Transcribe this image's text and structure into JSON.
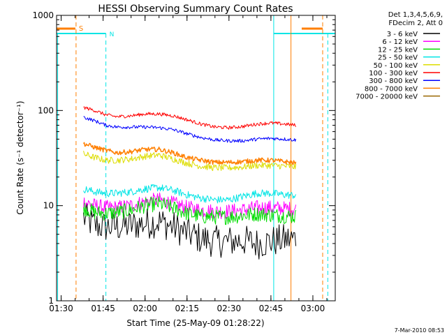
{
  "chart_data": {
    "type": "line",
    "title": "HESSI Observing Summary Count Rates",
    "xlabel": "Start Time (25-May-09 01:28:22)",
    "ylabel": "Count Rate (s⁻¹ detector⁻¹)",
    "y_scale": "log",
    "ylim": [
      1,
      1000
    ],
    "xlim": [
      "01:28:22",
      "03:08:00"
    ],
    "x_ticks": [
      "01:30",
      "01:45",
      "02:00",
      "02:15",
      "02:30",
      "02:45",
      "03:00"
    ],
    "y_ticks": [
      "1",
      "10",
      "100",
      "1000"
    ],
    "grid": false,
    "legend_placement": "top-right outside",
    "legend_header": [
      "Det 1,3,4,5,6,9,",
      "FDecim 2, Att 0"
    ],
    "series": [
      {
        "name": "3 - 6 keV",
        "color": "#000000",
        "x": [
          "01:38",
          "01:42",
          "01:46",
          "01:50",
          "01:55",
          "02:00",
          "02:05",
          "02:10",
          "02:15",
          "02:20",
          "02:25",
          "02:30",
          "02:35",
          "02:40",
          "02:45",
          "02:50",
          "02:54"
        ],
        "y": [
          7.5,
          6.2,
          6.0,
          6.0,
          6.2,
          6.5,
          6.8,
          6.0,
          5.2,
          4.5,
          4.2,
          4.2,
          4.3,
          4.0,
          4.2,
          4.4,
          4.5
        ]
      },
      {
        "name": "6 - 12 keV",
        "color": "#ff00ff",
        "x": [
          "01:38",
          "01:42",
          "01:46",
          "01:50",
          "01:55",
          "02:00",
          "02:05",
          "02:10",
          "02:15",
          "02:20",
          "02:25",
          "02:30",
          "02:35",
          "02:40",
          "02:45",
          "02:50",
          "02:54"
        ],
        "y": [
          11.0,
          10.0,
          9.5,
          9.5,
          10.0,
          11.0,
          11.5,
          10.5,
          9.5,
          9.0,
          8.7,
          8.7,
          9.0,
          9.5,
          9.5,
          9.3,
          9.2
        ]
      },
      {
        "name": "12 - 25 keV",
        "color": "#00dd00",
        "x": [
          "01:38",
          "01:42",
          "01:46",
          "01:50",
          "01:55",
          "02:00",
          "02:05",
          "02:10",
          "02:15",
          "02:20",
          "02:25",
          "02:30",
          "02:35",
          "02:40",
          "02:45",
          "02:50",
          "02:54"
        ],
        "y": [
          9.5,
          8.5,
          8.3,
          8.5,
          9.0,
          10.0,
          10.5,
          9.5,
          8.3,
          7.7,
          7.6,
          7.6,
          7.9,
          8.2,
          8.0,
          7.8,
          7.7
        ]
      },
      {
        "name": "25 - 50 keV",
        "color": "#00e5e5",
        "x": [
          "01:38",
          "01:42",
          "01:46",
          "01:50",
          "01:55",
          "02:00",
          "02:05",
          "02:10",
          "02:15",
          "02:20",
          "02:25",
          "02:30",
          "02:35",
          "02:40",
          "02:45",
          "02:50",
          "02:54"
        ],
        "y": [
          15.0,
          14.0,
          13.5,
          13.5,
          14.0,
          15.0,
          15.5,
          14.5,
          13.0,
          12.0,
          11.5,
          11.5,
          12.5,
          13.5,
          13.5,
          13.0,
          12.8
        ]
      },
      {
        "name": "50 - 100 keV",
        "color": "#dddd00",
        "x": [
          "01:38",
          "01:42",
          "01:46",
          "01:50",
          "01:55",
          "02:00",
          "02:05",
          "02:10",
          "02:15",
          "02:20",
          "02:25",
          "02:30",
          "02:35",
          "02:40",
          "02:45",
          "02:50",
          "02:54"
        ],
        "y": [
          35.0,
          32.0,
          30.0,
          30.0,
          31.0,
          33.0,
          34.0,
          31.0,
          28.0,
          26.0,
          25.0,
          25.0,
          25.5,
          26.5,
          26.5,
          26.0,
          25.5
        ]
      },
      {
        "name": "100 - 300 keV",
        "color": "#ff0000",
        "x": [
          "01:38",
          "01:42",
          "01:46",
          "01:50",
          "01:55",
          "02:00",
          "02:05",
          "02:10",
          "02:15",
          "02:20",
          "02:25",
          "02:30",
          "02:35",
          "02:40",
          "02:45",
          "02:50",
          "02:54"
        ],
        "y": [
          108.0,
          100.0,
          90.0,
          86.0,
          88.0,
          92.0,
          92.0,
          88.0,
          80.0,
          72.0,
          67.0,
          66.0,
          68.0,
          72.0,
          74.0,
          72.0,
          70.0
        ]
      },
      {
        "name": "300 - 800 keV",
        "color": "#0000ff",
        "x": [
          "01:38",
          "01:42",
          "01:46",
          "01:50",
          "01:55",
          "02:00",
          "02:05",
          "02:10",
          "02:15",
          "02:20",
          "02:25",
          "02:30",
          "02:35",
          "02:40",
          "02:45",
          "02:50",
          "02:54"
        ],
        "y": [
          85.0,
          78.0,
          70.0,
          67.0,
          67.0,
          67.0,
          66.0,
          63.0,
          57.0,
          52.0,
          49.0,
          48.0,
          48.0,
          50.0,
          51.0,
          50.0,
          49.0
        ]
      },
      {
        "name": "800 - 7000 keV",
        "color": "#ff7f00",
        "x": [
          "01:38",
          "01:42",
          "01:46",
          "01:50",
          "01:55",
          "02:00",
          "02:05",
          "02:10",
          "02:15",
          "02:20",
          "02:25",
          "02:30",
          "02:35",
          "02:40",
          "02:45",
          "02:50",
          "02:54"
        ],
        "y": [
          45.0,
          41.0,
          38.0,
          36.0,
          37.0,
          39.0,
          39.0,
          36.0,
          32.0,
          30.0,
          28.5,
          28.5,
          29.0,
          30.0,
          30.0,
          29.0,
          28.0
        ]
      },
      {
        "name": "7000 - 20000 keV",
        "color": "#996600",
        "x": [],
        "y": []
      }
    ],
    "annotations": [
      {
        "text": "S",
        "color": "#ff7f00"
      },
      {
        "text": "N",
        "color": "#00e5e5"
      }
    ]
  },
  "footer": {
    "timestamp": "7-Mar-2010 08:53"
  }
}
